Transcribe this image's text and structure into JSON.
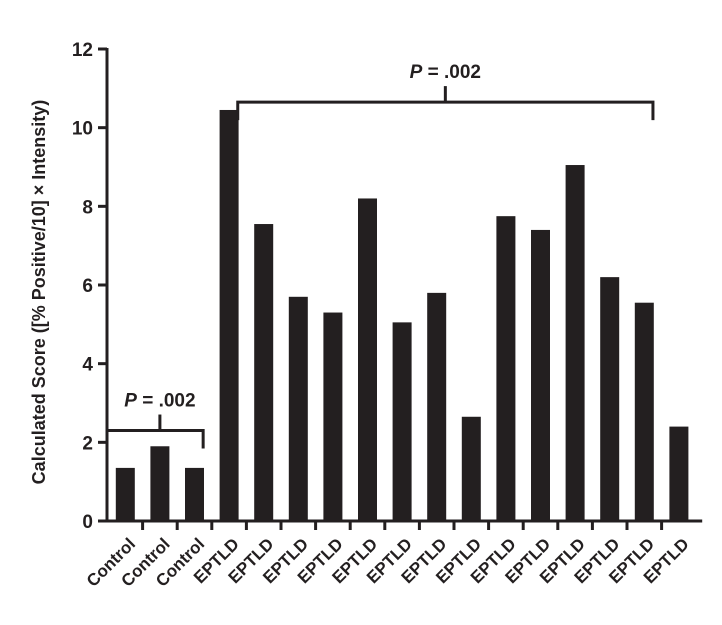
{
  "chart_data": {
    "type": "bar",
    "title": "",
    "xlabel": "",
    "ylabel": "Calculated Score ([% Positive/10] × Intensity)",
    "ylim": [
      0,
      12
    ],
    "yticks": [
      0,
      2,
      4,
      6,
      8,
      10,
      12
    ],
    "categories": [
      "Control",
      "Control",
      "Control",
      "EPTLD",
      "EPTLD",
      "EPTLD",
      "EPTLD",
      "EPTLD",
      "EPTLD",
      "EPTLD",
      "EPTLD",
      "EPTLD",
      "EPTLD",
      "EPTLD",
      "EPTLD",
      "EPTLD",
      "EPTLD"
    ],
    "values": [
      1.35,
      1.9,
      1.35,
      10.45,
      7.55,
      5.7,
      5.3,
      8.2,
      5.05,
      5.8,
      2.65,
      7.75,
      7.4,
      9.05,
      6.2,
      5.55,
      2.4
    ],
    "bar_color": "#231f20",
    "grid": false,
    "legend": "none",
    "annotations": [
      {
        "p_letter": "P",
        "rest": " = .002",
        "from_index": 0,
        "to_index": 2,
        "bracket_y": 2.3
      },
      {
        "p_letter": "P",
        "rest": " = .002",
        "from_index": 3,
        "to_index": 15,
        "bracket_y": 10.65
      }
    ]
  }
}
